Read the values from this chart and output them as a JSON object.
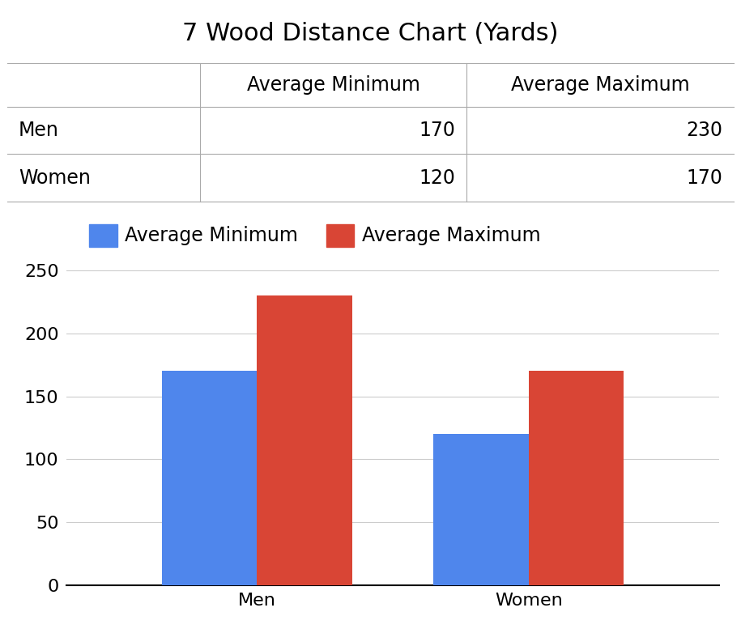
{
  "title": "7 Wood Distance Chart (Yards)",
  "categories": [
    "Men",
    "Women"
  ],
  "avg_min": [
    170,
    120
  ],
  "avg_max": [
    230,
    170
  ],
  "color_min": "#4F86EC",
  "color_max": "#D94535",
  "legend_labels": [
    "Average Minimum",
    "Average Maximum"
  ],
  "table_col_labels": [
    "",
    "Average Minimum",
    "Average Maximum"
  ],
  "table_row_labels": [
    "Men",
    "Women"
  ],
  "ylim": [
    0,
    260
  ],
  "yticks": [
    0,
    50,
    100,
    150,
    200,
    250
  ],
  "bar_width": 0.35,
  "title_fontsize": 22,
  "legend_fontsize": 17,
  "tick_fontsize": 16,
  "table_fontsize": 17,
  "grid_color": "#cccccc",
  "bg_color": "#ffffff"
}
